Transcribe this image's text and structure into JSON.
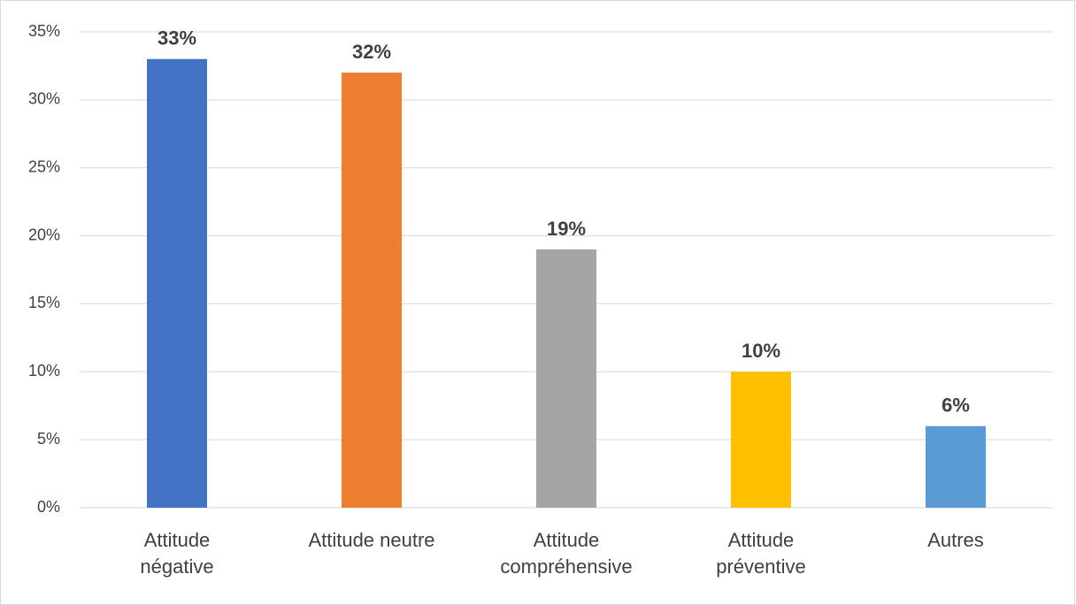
{
  "chart_data": {
    "type": "bar",
    "categories": [
      "Attitude négative",
      "Attitude neutre",
      "Attitude compréhensive",
      "Attitude préventive",
      "Autres"
    ],
    "values": [
      33,
      32,
      19,
      10,
      6
    ],
    "value_labels": [
      "33%",
      "32%",
      "19%",
      "10%",
      "6%"
    ],
    "colors": [
      "#4472c4",
      "#ed7d31",
      "#a5a5a5",
      "#ffc000",
      "#5b9bd5"
    ],
    "ylim": [
      0,
      35
    ],
    "yticks": [
      {
        "value": 0,
        "label": "0%"
      },
      {
        "value": 5,
        "label": "5%"
      },
      {
        "value": 10,
        "label": "10%"
      },
      {
        "value": 15,
        "label": "15%"
      },
      {
        "value": 20,
        "label": "20%"
      },
      {
        "value": 25,
        "label": "25%"
      },
      {
        "value": 30,
        "label": "30%"
      },
      {
        "value": 35,
        "label": "35%"
      }
    ],
    "grid": true
  }
}
